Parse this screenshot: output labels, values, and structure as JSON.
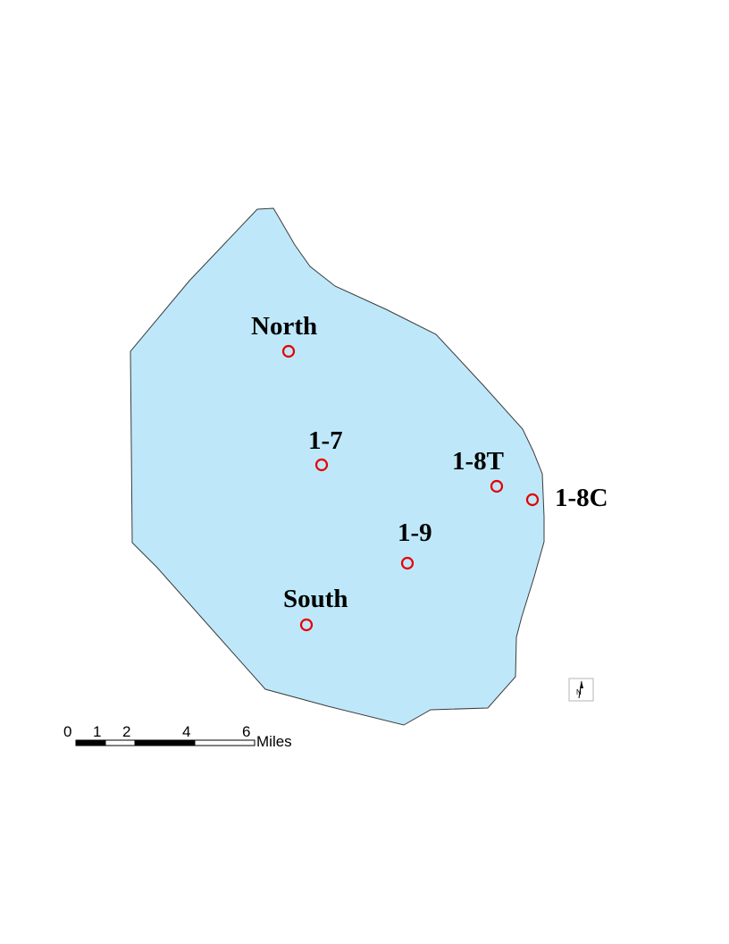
{
  "map": {
    "lake_color": "#bee8fa",
    "marker_color": "#e60000",
    "stations": [
      {
        "label": "North"
      },
      {
        "label": "1-7"
      },
      {
        "label": "1-8T"
      },
      {
        "label": "1-8C"
      },
      {
        "label": "1-9"
      },
      {
        "label": "South"
      }
    ]
  },
  "scale_bar": {
    "ticks": [
      "0",
      "1",
      "2",
      "4",
      "6"
    ],
    "unit": "Miles"
  },
  "north_arrow": {
    "letter": "N",
    "icon": "north-arrow-icon"
  }
}
